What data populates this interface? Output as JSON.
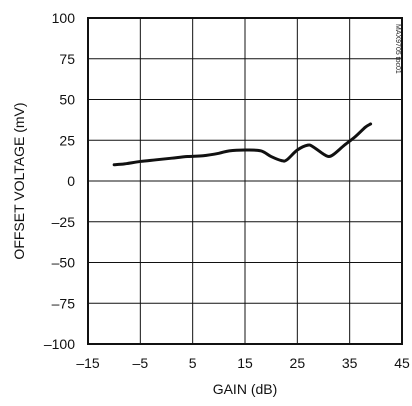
{
  "chart_data": {
    "type": "line",
    "title": "",
    "xlabel": "GAIN (dB)",
    "ylabel": "OFFSET VOLTAGE (mV)",
    "xlim": [
      -15,
      45
    ],
    "ylim": [
      -100,
      100
    ],
    "x_ticks": [
      -15,
      -5,
      5,
      15,
      25,
      35,
      45
    ],
    "y_ticks": [
      100,
      75,
      50,
      25,
      0,
      -25,
      -50,
      -75,
      -100
    ],
    "grid": true,
    "corner_code": "MAX9705 toc01",
    "colors": {
      "line": "#111111",
      "grid": "#111111",
      "frame": "#111111"
    },
    "series": [
      {
        "x": [
          -10,
          -8,
          -5,
          -2,
          1,
          4,
          7,
          10,
          12,
          15,
          18,
          20,
          22,
          23,
          25,
          27,
          28,
          30,
          31,
          32,
          34,
          36,
          38,
          39
        ],
        "y": [
          10,
          10.5,
          12,
          13,
          14,
          15,
          15.5,
          17,
          18.5,
          19,
          18.5,
          15,
          12.5,
          13,
          19,
          22,
          21,
          16.5,
          15,
          16.5,
          22,
          27,
          33,
          35
        ]
      }
    ]
  }
}
